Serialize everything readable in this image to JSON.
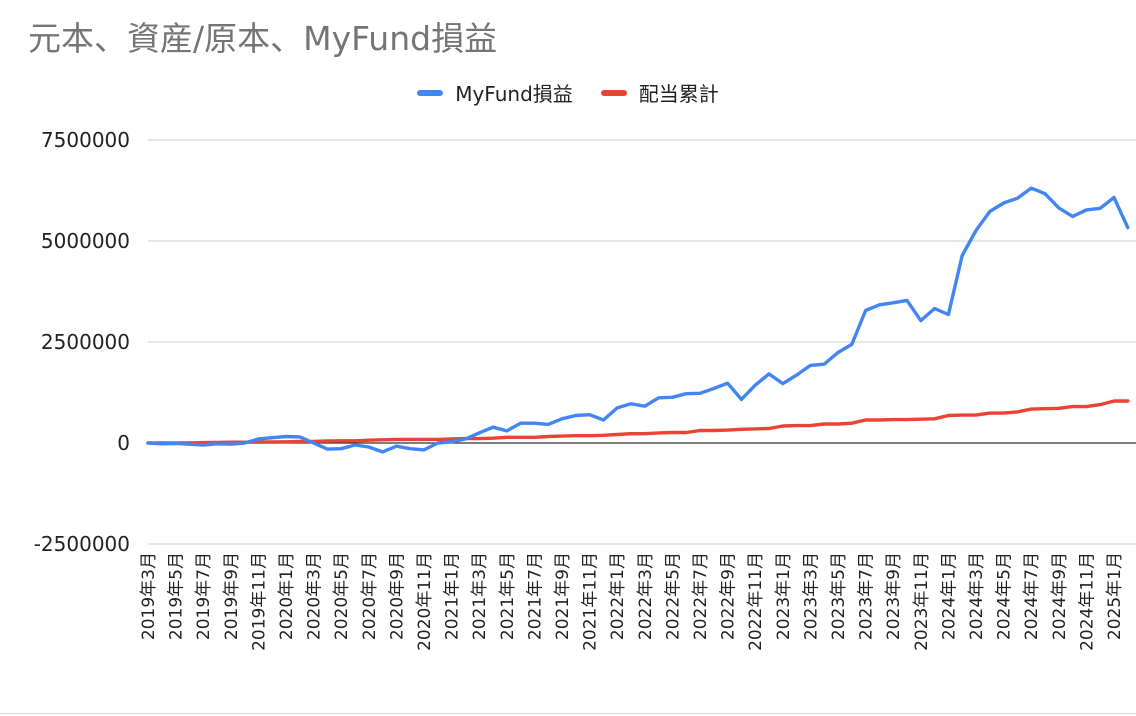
{
  "chart_data": {
    "type": "line",
    "title": "元本、資産/原本、MyFund損益",
    "legend_position": "top",
    "grid": true,
    "ylim": [
      -2500000,
      7500000
    ],
    "y_ticks": [
      "7500000",
      "5000000",
      "2500000",
      "0",
      "-2500000"
    ],
    "x": [
      "2019年3月",
      "2019年4月",
      "2019年5月",
      "2019年6月",
      "2019年7月",
      "2019年8月",
      "2019年9月",
      "2019年10月",
      "2019年11月",
      "2019年12月",
      "2020年1月",
      "2020年2月",
      "2020年3月",
      "2020年4月",
      "2020年5月",
      "2020年6月",
      "2020年7月",
      "2020年8月",
      "2020年9月",
      "2020年10月",
      "2020年11月",
      "2020年12月",
      "2021年1月",
      "2021年2月",
      "2021年3月",
      "2021年4月",
      "2021年5月",
      "2021年6月",
      "2021年7月",
      "2021年8月",
      "2021年9月",
      "2021年10月",
      "2021年11月",
      "2021年12月",
      "2022年1月",
      "2022年2月",
      "2022年3月",
      "2022年4月",
      "2022年5月",
      "2022年6月",
      "2022年7月",
      "2022年8月",
      "2022年9月",
      "2022年10月",
      "2022年11月",
      "2022年12月",
      "2023年1月",
      "2023年2月",
      "2023年3月",
      "2023年4月",
      "2023年5月",
      "2023年6月",
      "2023年7月",
      "2023年8月",
      "2023年9月",
      "2023年10月",
      "2023年11月",
      "2023年12月",
      "2024年1月",
      "2024年2月",
      "2024年3月",
      "2024年4月",
      "2024年5月",
      "2024年6月",
      "2024年7月",
      "2024年8月",
      "2024年9月",
      "2024年10月",
      "2024年11月",
      "2024年12月",
      "2025年1月",
      "2025年2月"
    ],
    "x_tick_labels": [
      "2019年3月",
      "2019年5月",
      "2019年7月",
      "2019年9月",
      "2019年11月",
      "2020年1月",
      "2020年3月",
      "2020年5月",
      "2020年7月",
      "2020年9月",
      "2020年11月",
      "2021年1月",
      "2021年3月",
      "2021年5月",
      "2021年7月",
      "2021年9月",
      "2021年11月",
      "2022年1月",
      "2022年3月",
      "2022年5月",
      "2022年7月",
      "2022年9月",
      "2022年11月",
      "2023年1月",
      "2023年3月",
      "2023年5月",
      "2023年7月",
      "2023年9月",
      "2023年11月",
      "2024年1月",
      "2024年3月",
      "2024年5月",
      "2024年7月",
      "2024年9月",
      "2024年11月",
      "2025年1月"
    ],
    "series": [
      {
        "name": "MyFund損益",
        "color": "#4285f4",
        "values": [
          0,
          -20000,
          -10000,
          -30000,
          -50000,
          -20000,
          -30000,
          0,
          100000,
          130000,
          160000,
          150000,
          0,
          -150000,
          -140000,
          -50000,
          -100000,
          -220000,
          -80000,
          -140000,
          -170000,
          0,
          30000,
          100000,
          250000,
          390000,
          300000,
          490000,
          490000,
          460000,
          600000,
          680000,
          700000,
          570000,
          870000,
          970000,
          910000,
          1120000,
          1130000,
          1220000,
          1230000,
          1350000,
          1480000,
          1080000,
          1430000,
          1710000,
          1470000,
          1680000,
          1920000,
          1950000,
          2240000,
          2440000,
          3280000,
          3420000,
          3470000,
          3530000,
          3030000,
          3330000,
          3180000,
          4640000,
          5260000,
          5730000,
          5940000,
          6060000,
          6310000,
          6170000,
          5820000,
          5610000,
          5770000,
          5810000,
          6080000,
          5330000
        ]
      },
      {
        "name": "配当累計",
        "color": "#ea4335",
        "values": [
          0,
          0,
          0,
          0,
          10000,
          15000,
          20000,
          20000,
          25000,
          25000,
          30000,
          40000,
          40000,
          50000,
          55000,
          55000,
          70000,
          80000,
          90000,
          90000,
          90000,
          90000,
          100000,
          110000,
          110000,
          120000,
          140000,
          140000,
          140000,
          160000,
          170000,
          180000,
          180000,
          190000,
          210000,
          230000,
          230000,
          250000,
          260000,
          260000,
          310000,
          310000,
          320000,
          340000,
          350000,
          360000,
          420000,
          430000,
          430000,
          470000,
          470000,
          490000,
          570000,
          570000,
          580000,
          580000,
          590000,
          600000,
          680000,
          690000,
          690000,
          740000,
          740000,
          770000,
          840000,
          850000,
          860000,
          900000,
          900000,
          950000,
          1040000,
          1040000
        ]
      }
    ]
  }
}
